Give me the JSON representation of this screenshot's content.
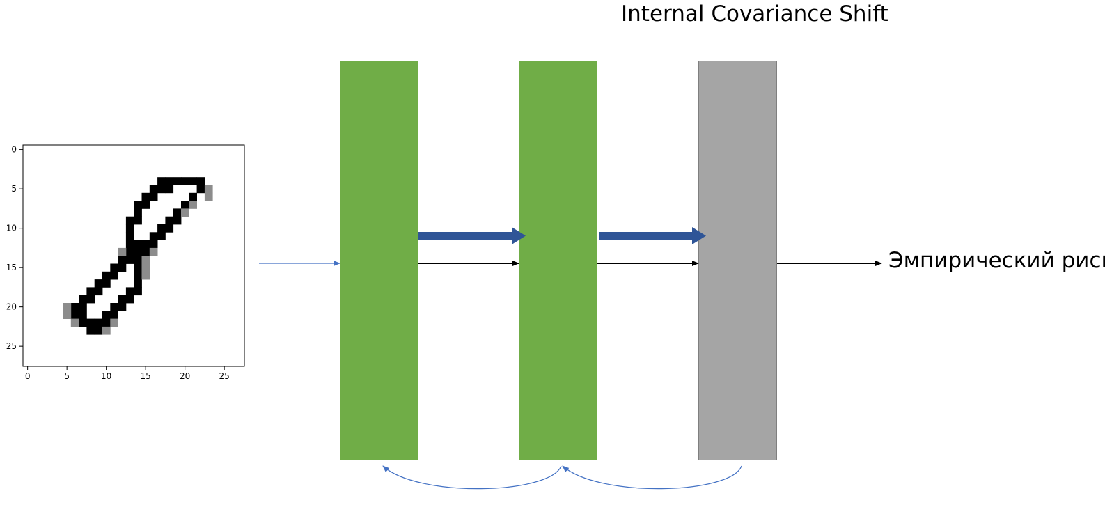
{
  "title": "Internal Covariance Shift",
  "output_label": "Эмпирический риск",
  "layers": [
    {
      "kind": "hidden",
      "color": "#70ad47",
      "border": "#507e32"
    },
    {
      "kind": "hidden",
      "color": "#70ad47",
      "border": "#507e32"
    },
    {
      "kind": "output",
      "color": "#a5a5a5",
      "border": "#7f7f7f"
    }
  ],
  "input_image": {
    "x_ticks": [
      "0",
      "5",
      "10",
      "15",
      "20",
      "25"
    ],
    "y_ticks": [
      "0",
      "5",
      "10",
      "15",
      "20",
      "25"
    ]
  },
  "colors": {
    "shift_arrow": "#2f5597",
    "forward_arrow": "#000000",
    "backprop_arrow": "#4472c4",
    "input_arrow": "#4472c4"
  }
}
